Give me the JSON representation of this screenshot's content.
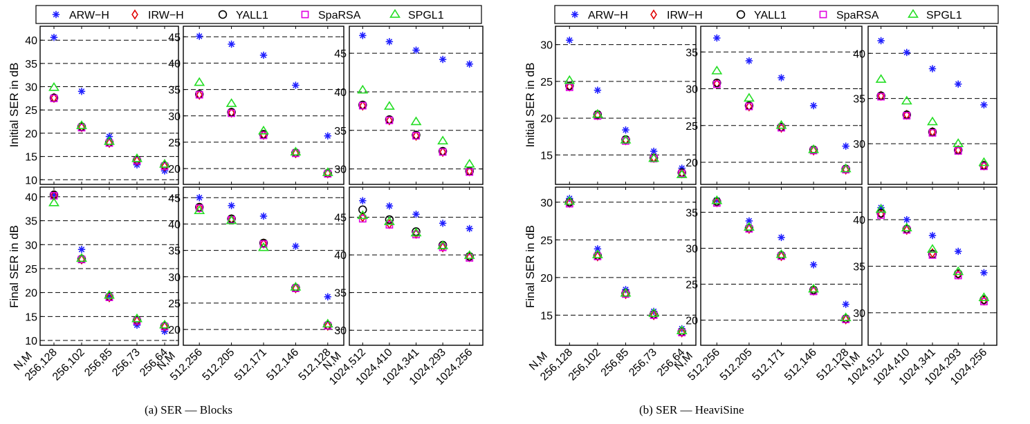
{
  "legend": [
    {
      "name": "ARW−H",
      "marker": "asterisk",
      "color": "#1f1fff"
    },
    {
      "name": "IRW−H",
      "marker": "diamond",
      "color": "#e00000"
    },
    {
      "name": "YALL1",
      "marker": "circle",
      "color": "#000000"
    },
    {
      "name": "SpaRSA",
      "marker": "square",
      "color": "#e000e0"
    },
    {
      "name": "SPGL1",
      "marker": "triangle",
      "color": "#22dd22"
    }
  ],
  "ylabels": {
    "initial": "Initial SER in dB",
    "final": "Final SER in dB"
  },
  "xaxis_label": "N,M",
  "captions": [
    "(a)  SER — Blocks",
    "(b)  SER — HeaviSine"
  ],
  "chart_data": [
    {
      "type": "scatter",
      "group": "Blocks",
      "row": "Initial SER in dB",
      "ylim": [
        9,
        43
      ],
      "yticks": [
        10,
        15,
        20,
        25,
        30,
        35,
        40
      ],
      "categories": [
        "256,128",
        "256,102",
        "256,85",
        "256,73",
        "256,64"
      ],
      "series": [
        {
          "name": "ARW−H",
          "values": [
            40.6,
            29.0,
            19.3,
            13.2,
            11.9
          ]
        },
        {
          "name": "IRW−H",
          "values": [
            27.6,
            21.3,
            17.9,
            14.1,
            12.9
          ]
        },
        {
          "name": "YALL1",
          "values": [
            27.6,
            21.4,
            18.0,
            14.2,
            13.0
          ]
        },
        {
          "name": "SpaRSA",
          "values": [
            27.5,
            21.2,
            17.9,
            14.1,
            12.9
          ]
        },
        {
          "name": "SPGL1",
          "values": [
            29.8,
            21.6,
            18.2,
            14.5,
            13.3
          ]
        }
      ]
    },
    {
      "type": "scatter",
      "group": "Blocks",
      "row": "Initial SER in dB",
      "ylim": [
        17,
        47
      ],
      "yticks": [
        20,
        25,
        30,
        35,
        40,
        45
      ],
      "categories": [
        "512,256",
        "512,205",
        "512,171",
        "512,146",
        "512,128"
      ],
      "series": [
        {
          "name": "ARW−H",
          "values": [
            45.1,
            43.6,
            41.5,
            35.8,
            26.2
          ]
        },
        {
          "name": "IRW−H",
          "values": [
            34.0,
            30.6,
            26.4,
            22.9,
            19.1
          ]
        },
        {
          "name": "YALL1",
          "values": [
            34.1,
            30.7,
            26.5,
            23.0,
            19.1
          ]
        },
        {
          "name": "SpaRSA",
          "values": [
            34.0,
            30.5,
            26.3,
            22.9,
            19.0
          ]
        },
        {
          "name": "SPGL1",
          "values": [
            36.3,
            32.3,
            27.1,
            23.1,
            19.2
          ]
        }
      ]
    },
    {
      "type": "scatter",
      "group": "Blocks",
      "row": "Initial SER in dB",
      "ylim": [
        28,
        48.5
      ],
      "yticks": [
        30,
        35,
        40,
        45
      ],
      "categories": [
        "1024,512",
        "1024,410",
        "1024,341",
        "1024,293",
        "1024,256"
      ],
      "series": [
        {
          "name": "ARW−H",
          "values": [
            47.3,
            46.5,
            45.4,
            44.2,
            43.6
          ]
        },
        {
          "name": "IRW−H",
          "values": [
            38.2,
            36.3,
            34.3,
            32.2,
            29.7
          ]
        },
        {
          "name": "YALL1",
          "values": [
            38.3,
            36.4,
            34.4,
            32.3,
            29.7
          ]
        },
        {
          "name": "SpaRSA",
          "values": [
            38.2,
            36.3,
            34.3,
            32.2,
            29.6
          ]
        },
        {
          "name": "SPGL1",
          "values": [
            40.2,
            38.1,
            36.1,
            33.6,
            30.6
          ]
        }
      ]
    },
    {
      "type": "scatter",
      "group": "HeaviSine",
      "row": "Initial SER in dB",
      "ylim": [
        11,
        32.5
      ],
      "yticks": [
        15,
        20,
        25,
        30
      ],
      "categories": [
        "256,128",
        "256,102",
        "256,85",
        "256,73",
        "256,64"
      ],
      "series": [
        {
          "name": "ARW−H",
          "values": [
            30.6,
            23.8,
            18.4,
            15.5,
            13.2
          ]
        },
        {
          "name": "IRW−H",
          "values": [
            24.3,
            20.4,
            17.0,
            14.6,
            12.5
          ]
        },
        {
          "name": "YALL1",
          "values": [
            24.4,
            20.5,
            17.1,
            14.6,
            12.6
          ]
        },
        {
          "name": "SpaRSA",
          "values": [
            24.2,
            20.3,
            16.9,
            14.5,
            12.5
          ]
        },
        {
          "name": "SPGL1",
          "values": [
            25.1,
            20.5,
            17.0,
            14.5,
            12.3
          ]
        }
      ]
    },
    {
      "type": "scatter",
      "group": "HeaviSine",
      "row": "Initial SER in dB",
      "ylim": [
        17,
        38.5
      ],
      "yticks": [
        20,
        25,
        30,
        35
      ],
      "categories": [
        "512,256",
        "512,205",
        "512,171",
        "512,146",
        "512,128"
      ],
      "series": [
        {
          "name": "ARW−H",
          "values": [
            36.9,
            33.8,
            31.5,
            27.7,
            22.2
          ]
        },
        {
          "name": "IRW−H",
          "values": [
            30.7,
            27.6,
            24.7,
            21.6,
            19.0
          ]
        },
        {
          "name": "YALL1",
          "values": [
            30.8,
            27.7,
            24.8,
            21.7,
            19.1
          ]
        },
        {
          "name": "SpaRSA",
          "values": [
            30.6,
            27.6,
            24.7,
            21.6,
            19.0
          ]
        },
        {
          "name": "SPGL1",
          "values": [
            32.4,
            28.7,
            25.0,
            21.7,
            19.1
          ]
        }
      ]
    },
    {
      "type": "scatter",
      "group": "HeaviSine",
      "row": "Initial SER in dB",
      "ylim": [
        25.5,
        43
      ],
      "yticks": [
        30,
        35,
        40
      ],
      "categories": [
        "1024,512",
        "1024,410",
        "1024,341",
        "1024,293",
        "1024,256"
      ],
      "series": [
        {
          "name": "ARW−H",
          "values": [
            41.4,
            40.1,
            38.3,
            36.6,
            34.3
          ]
        },
        {
          "name": "IRW−H",
          "values": [
            35.3,
            33.2,
            31.3,
            29.3,
            27.6
          ]
        },
        {
          "name": "YALL1",
          "values": [
            35.3,
            33.2,
            31.3,
            29.3,
            27.6
          ]
        },
        {
          "name": "SpaRSA",
          "values": [
            35.2,
            33.1,
            31.2,
            29.2,
            27.5
          ]
        },
        {
          "name": "SPGL1",
          "values": [
            37.1,
            34.7,
            32.4,
            30.0,
            27.9
          ]
        }
      ]
    },
    {
      "type": "scatter",
      "group": "Blocks",
      "row": "Final SER in dB",
      "ylim": [
        9,
        42
      ],
      "yticks": [
        10,
        15,
        20,
        25,
        30,
        35,
        40
      ],
      "categories": [
        "256,128",
        "256,102",
        "256,85",
        "256,73",
        "256,64"
      ],
      "series": [
        {
          "name": "ARW−H",
          "values": [
            40.4,
            29.0,
            19.3,
            13.2,
            11.9
          ]
        },
        {
          "name": "IRW−H",
          "values": [
            40.3,
            26.9,
            19.0,
            14.1,
            12.9
          ]
        },
        {
          "name": "YALL1",
          "values": [
            40.4,
            27.0,
            19.1,
            14.2,
            13.0
          ]
        },
        {
          "name": "SpaRSA",
          "values": [
            40.2,
            26.9,
            19.0,
            14.1,
            12.9
          ]
        },
        {
          "name": "SPGL1",
          "values": [
            38.7,
            27.1,
            19.4,
            14.5,
            13.2
          ]
        }
      ]
    },
    {
      "type": "scatter",
      "group": "Blocks",
      "row": "Final SER in dB",
      "ylim": [
        17,
        47
      ],
      "yticks": [
        20,
        25,
        30,
        35,
        40,
        45
      ],
      "categories": [
        "512,256",
        "512,205",
        "512,171",
        "512,146",
        "512,128"
      ],
      "series": [
        {
          "name": "ARW−H",
          "values": [
            45.0,
            43.5,
            41.5,
            35.8,
            26.2
          ]
        },
        {
          "name": "IRW−H",
          "values": [
            43.1,
            40.9,
            36.3,
            27.8,
            20.7
          ]
        },
        {
          "name": "YALL1",
          "values": [
            43.2,
            41.0,
            36.4,
            27.9,
            20.8
          ]
        },
        {
          "name": "SpaRSA",
          "values": [
            43.0,
            40.8,
            36.2,
            27.8,
            20.7
          ]
        },
        {
          "name": "SPGL1",
          "values": [
            42.5,
            40.6,
            35.5,
            28.0,
            21.0
          ]
        }
      ]
    },
    {
      "type": "scatter",
      "group": "Blocks",
      "row": "Final SER in dB",
      "ylim": [
        28,
        49
      ],
      "yticks": [
        30,
        35,
        40,
        45
      ],
      "categories": [
        "1024,512",
        "1024,410",
        "1024,341",
        "1024,293",
        "1024,256"
      ],
      "series": [
        {
          "name": "ARW−H",
          "values": [
            47.2,
            46.5,
            45.4,
            44.2,
            43.5
          ]
        },
        {
          "name": "IRW−H",
          "values": [
            45.0,
            44.1,
            42.8,
            41.0,
            39.7
          ]
        },
        {
          "name": "YALL1",
          "values": [
            46.0,
            44.7,
            43.1,
            41.3,
            39.8
          ]
        },
        {
          "name": "SpaRSA",
          "values": [
            44.8,
            44.0,
            42.7,
            41.0,
            39.6
          ]
        },
        {
          "name": "SPGL1",
          "values": [
            45.2,
            44.4,
            42.9,
            41.2,
            39.9
          ]
        }
      ]
    },
    {
      "type": "scatter",
      "group": "HeaviSine",
      "row": "Final SER in dB",
      "ylim": [
        11,
        32
      ],
      "yticks": [
        15,
        20,
        25,
        30
      ],
      "categories": [
        "256,128",
        "256,102",
        "256,85",
        "256,73",
        "256,64"
      ],
      "series": [
        {
          "name": "ARW−H",
          "values": [
            30.5,
            23.8,
            18.4,
            15.5,
            13.2
          ]
        },
        {
          "name": "IRW−H",
          "values": [
            29.9,
            22.8,
            17.8,
            15.0,
            12.7
          ]
        },
        {
          "name": "YALL1",
          "values": [
            30.0,
            22.9,
            17.9,
            15.1,
            12.8
          ]
        },
        {
          "name": "SpaRSA",
          "values": [
            29.8,
            22.8,
            17.8,
            15.0,
            12.7
          ]
        },
        {
          "name": "SPGL1",
          "values": [
            30.1,
            23.0,
            17.9,
            15.2,
            12.9
          ]
        }
      ]
    },
    {
      "type": "scatter",
      "group": "HeaviSine",
      "row": "Final SER in dB",
      "ylim": [
        16.5,
        38.5
      ],
      "yticks": [
        20,
        25,
        30,
        35
      ],
      "categories": [
        "512,256",
        "512,205",
        "512,171",
        "512,146",
        "512,128"
      ],
      "series": [
        {
          "name": "ARW−H",
          "values": [
            36.7,
            33.8,
            31.5,
            27.7,
            22.2
          ]
        },
        {
          "name": "IRW−H",
          "values": [
            36.4,
            32.7,
            28.9,
            24.1,
            20.1
          ]
        },
        {
          "name": "YALL1",
          "values": [
            36.5,
            32.8,
            29.0,
            24.2,
            20.2
          ]
        },
        {
          "name": "SpaRSA",
          "values": [
            36.3,
            32.7,
            28.9,
            24.0,
            20.1
          ]
        },
        {
          "name": "SPGL1",
          "values": [
            36.6,
            32.9,
            29.1,
            24.3,
            20.3
          ]
        }
      ]
    },
    {
      "type": "scatter",
      "group": "HeaviSine",
      "row": "Final SER in dB",
      "ylim": [
        26.5,
        43.5
      ],
      "yticks": [
        30,
        35,
        40
      ],
      "categories": [
        "1024,512",
        "1024,410",
        "1024,341",
        "1024,293",
        "1024,256"
      ],
      "series": [
        {
          "name": "ARW−H",
          "values": [
            41.3,
            40.0,
            38.3,
            36.6,
            34.3
          ]
        },
        {
          "name": "IRW−H",
          "values": [
            40.6,
            38.9,
            36.4,
            34.1,
            31.3
          ]
        },
        {
          "name": "YALL1",
          "values": [
            40.7,
            39.0,
            36.3,
            34.2,
            31.4
          ]
        },
        {
          "name": "SpaRSA",
          "values": [
            40.5,
            38.9,
            36.2,
            34.0,
            31.2
          ]
        },
        {
          "name": "SPGL1",
          "values": [
            41.1,
            39.1,
            36.8,
            34.4,
            31.6
          ]
        }
      ]
    }
  ]
}
